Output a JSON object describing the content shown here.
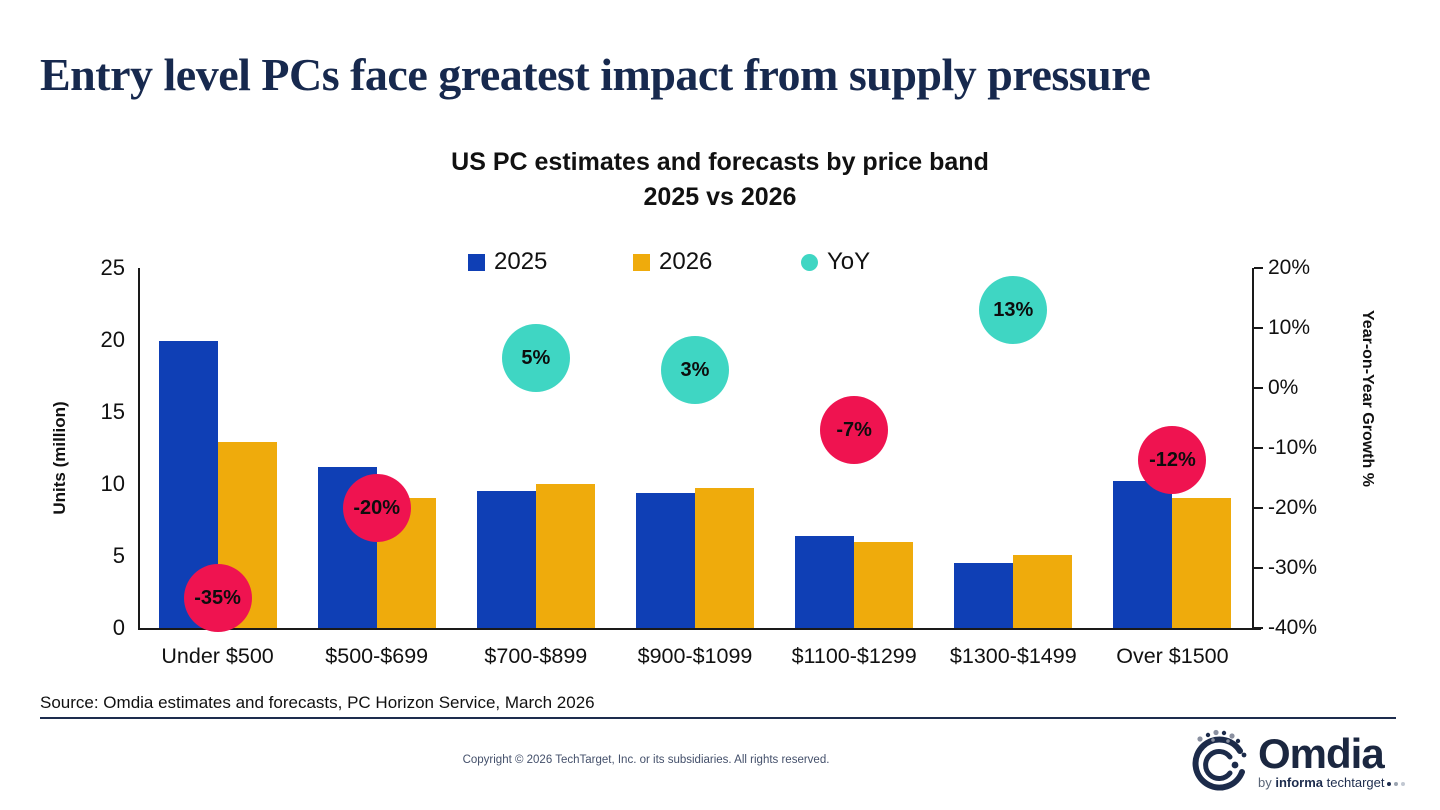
{
  "page": {
    "title": "Entry level PCs face greatest impact from supply pressure",
    "source": "Source: Omdia estimates and forecasts, PC Horizon Service, March 2026",
    "copyright": "Copyright © 2026 TechTarget, Inc. or its subsidiaries. All rights reserved."
  },
  "logo": {
    "wordmark": "Omdia",
    "tagline_by": "by",
    "tagline_informa": "informa",
    "tagline_techtarget": "techtarget"
  },
  "chart_data": {
    "type": "bar",
    "title": "US PC estimates and forecasts by price band",
    "subtitle": "2025 vs 2026",
    "categories": [
      "Under $500",
      "$500-$699",
      "$700-$899",
      "$900-$1099",
      "$1100-$1299",
      "$1300-$1499",
      "Over $1500"
    ],
    "series": [
      {
        "name": "2025",
        "color": "#0f3fb5",
        "values": [
          19.9,
          11.2,
          9.5,
          9.4,
          6.4,
          4.5,
          10.2
        ]
      },
      {
        "name": "2026",
        "color": "#efab0c",
        "values": [
          12.9,
          9.0,
          10.0,
          9.7,
          6.0,
          5.1,
          9.0
        ]
      }
    ],
    "yoy": {
      "name": "YoY",
      "values": [
        -35,
        -20,
        5,
        3,
        -7,
        13,
        -12
      ],
      "labels": [
        "-35%",
        "-20%",
        "5%",
        "3%",
        "-7%",
        "13%",
        "-12%"
      ],
      "positive_color": "#3fd6c3",
      "negative_color": "#ef1350",
      "legend_color": "#3fd6c3"
    },
    "ylabel_left": "Units (million)",
    "ylabel_right": "Year-on-Year Growth %",
    "left_axis": {
      "min": 0,
      "max": 25,
      "ticks": [
        25,
        20,
        15,
        10,
        5,
        0
      ]
    },
    "right_axis": {
      "min": -40,
      "max": 20,
      "tick_values": [
        20,
        10,
        0,
        -10,
        -20,
        -30,
        -40
      ],
      "tick_labels": [
        "20%",
        "10%",
        "0%",
        "-10%",
        "-20%",
        "-30%",
        "-40%"
      ]
    },
    "grid": false,
    "legend_position": "top-center"
  }
}
